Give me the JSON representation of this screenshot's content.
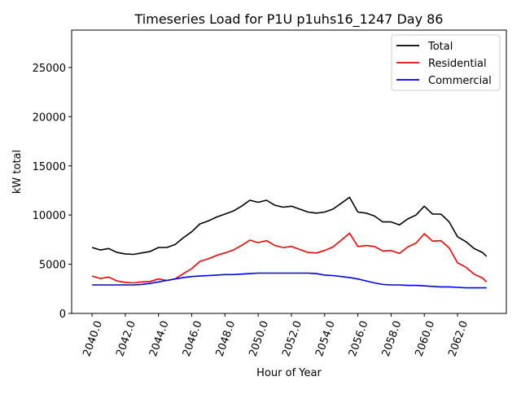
{
  "chart_data": {
    "type": "line",
    "title": "Timeseries Load for P1U p1uhs16_1247  Day 86",
    "xlabel": "Hour of Year",
    "ylabel": "kW total",
    "xlim": [
      2038.77,
      2064.94
    ],
    "ylim": [
      0,
      28800
    ],
    "xticks": [
      2040,
      2042,
      2044,
      2046,
      2048,
      2050,
      2052,
      2054,
      2056,
      2058,
      2060,
      2062
    ],
    "xtick_labels": [
      "2040.0",
      "2042.0",
      "2044.0",
      "2046.0",
      "2048.0",
      "2050.0",
      "2052.0",
      "2054.0",
      "2056.0",
      "2058.0",
      "2060.0",
      "2062.0"
    ],
    "yticks": [
      0,
      5000,
      10000,
      15000,
      20000,
      25000
    ],
    "ytick_labels": [
      "0",
      "5000",
      "10000",
      "15000",
      "20000",
      "25000"
    ],
    "grid": false,
    "legend_position": "top-right",
    "x": [
      2040,
      2040.5,
      2041,
      2041.5,
      2042,
      2042.5,
      2043,
      2043.5,
      2044,
      2044.5,
      2045,
      2045.5,
      2046,
      2046.5,
      2047,
      2047.5,
      2048,
      2048.5,
      2049,
      2049.5,
      2050,
      2050.5,
      2051,
      2051.5,
      2052,
      2052.5,
      2053,
      2053.5,
      2054,
      2054.5,
      2055,
      2055.5,
      2056,
      2056.5,
      2057,
      2057.5,
      2058,
      2058.5,
      2059,
      2059.5,
      2060,
      2060.5,
      2061,
      2061.5,
      2062,
      2062.5,
      2063,
      2063.5,
      2063.75
    ],
    "series": [
      {
        "name": "Total",
        "color": "#000000",
        "values": [
          6700,
          6450,
          6600,
          6200,
          6050,
          6000,
          6150,
          6300,
          6700,
          6700,
          7000,
          7700,
          8300,
          9100,
          9400,
          9800,
          10100,
          10400,
          10900,
          11500,
          11300,
          11500,
          11000,
          10800,
          10900,
          10600,
          10300,
          10200,
          10300,
          10600,
          11200,
          11800,
          10300,
          10200,
          9900,
          9300,
          9300,
          9000,
          9600,
          10000,
          10900,
          10100,
          10100,
          9300,
          7800,
          7300,
          6600,
          6200,
          5800
        ]
      },
      {
        "name": "Residential",
        "color": "#ff0000",
        "values": [
          3800,
          3550,
          3700,
          3300,
          3150,
          3100,
          3200,
          3250,
          3500,
          3350,
          3500,
          4050,
          4550,
          5300,
          5550,
          5900,
          6150,
          6450,
          6900,
          7450,
          7200,
          7400,
          6900,
          6700,
          6800,
          6500,
          6200,
          6150,
          6400,
          6750,
          7450,
          8150,
          6800,
          6900,
          6800,
          6350,
          6400,
          6100,
          6750,
          7150,
          8100,
          7350,
          7400,
          6650,
          5150,
          4700,
          4000,
          3600,
          3200
        ]
      },
      {
        "name": "Commercial",
        "color": "#0000ff",
        "values": [
          2900,
          2900,
          2900,
          2900,
          2900,
          2900,
          2950,
          3050,
          3200,
          3350,
          3500,
          3650,
          3750,
          3800,
          3850,
          3900,
          3950,
          3950,
          4000,
          4050,
          4100,
          4100,
          4100,
          4100,
          4100,
          4100,
          4100,
          4050,
          3900,
          3850,
          3750,
          3650,
          3500,
          3300,
          3100,
          2950,
          2900,
          2900,
          2850,
          2850,
          2800,
          2750,
          2700,
          2700,
          2650,
          2600,
          2600,
          2600,
          2600
        ]
      }
    ]
  }
}
